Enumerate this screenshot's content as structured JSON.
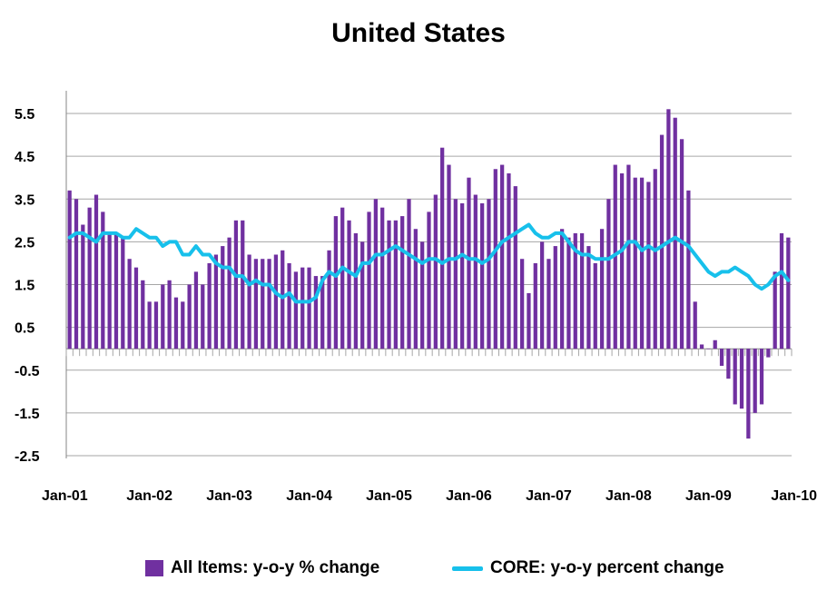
{
  "chart_data": {
    "type": "bar+line",
    "title": "United States",
    "xlabel": "",
    "ylabel": "",
    "ylim": [
      -2.5,
      6.0
    ],
    "y_ticks": [
      "5.5",
      "4.5",
      "3.5",
      "2.5",
      "1.5",
      "0.5",
      "-0.5",
      "-1.5",
      "-2.5"
    ],
    "y_tick_values": [
      5.5,
      4.5,
      3.5,
      2.5,
      1.5,
      0.5,
      -0.5,
      -1.5,
      -2.5
    ],
    "x_ticks": [
      "Jan-01",
      "Jan-02",
      "Jan-03",
      "Jan-04",
      "Jan-05",
      "Jan-06",
      "Jan-07",
      "Jan-08",
      "Jan-09",
      "Jan-10"
    ],
    "x_start": "Jan-01",
    "x_frequency": "monthly",
    "grid": "horizontal",
    "legend_position": "bottom",
    "colors": {
      "bars": "#7030A0",
      "line": "#17C0EB",
      "grid": "#A6A6A6"
    },
    "series": [
      {
        "name": "All Items: y-o-y % change",
        "kind": "bar",
        "values": [
          3.7,
          3.5,
          2.9,
          3.3,
          3.6,
          3.2,
          2.7,
          2.7,
          2.6,
          2.1,
          1.9,
          1.6,
          1.1,
          1.1,
          1.5,
          1.6,
          1.2,
          1.1,
          1.5,
          1.8,
          1.5,
          2.0,
          2.2,
          2.4,
          2.6,
          3.0,
          3.0,
          2.2,
          2.1,
          2.1,
          2.1,
          2.2,
          2.3,
          2.0,
          1.8,
          1.9,
          1.9,
          1.7,
          1.7,
          2.3,
          3.1,
          3.3,
          3.0,
          2.7,
          2.5,
          3.2,
          3.5,
          3.3,
          3.0,
          3.0,
          3.1,
          3.5,
          2.8,
          2.5,
          3.2,
          3.6,
          4.7,
          4.3,
          3.5,
          3.4,
          4.0,
          3.6,
          3.4,
          3.5,
          4.2,
          4.3,
          4.1,
          3.8,
          2.1,
          1.3,
          2.0,
          2.5,
          2.1,
          2.4,
          2.8,
          2.6,
          2.7,
          2.7,
          2.4,
          2.0,
          2.8,
          3.5,
          4.3,
          4.1,
          4.3,
          4.0,
          4.0,
          3.9,
          4.2,
          5.0,
          5.6,
          5.4,
          4.9,
          3.7,
          1.1,
          0.1,
          0.0,
          0.2,
          -0.4,
          -0.7,
          -1.3,
          -1.4,
          -2.1,
          -1.5,
          -1.3,
          -0.2,
          1.8,
          2.7,
          2.6
        ],
        "color": "#7030A0"
      },
      {
        "name": "CORE: y-o-y percent change",
        "kind": "line",
        "values": [
          2.6,
          2.7,
          2.7,
          2.6,
          2.5,
          2.7,
          2.7,
          2.7,
          2.6,
          2.6,
          2.8,
          2.7,
          2.6,
          2.6,
          2.4,
          2.5,
          2.5,
          2.2,
          2.2,
          2.4,
          2.2,
          2.2,
          2.0,
          1.9,
          1.9,
          1.7,
          1.7,
          1.5,
          1.6,
          1.5,
          1.5,
          1.3,
          1.2,
          1.3,
          1.1,
          1.1,
          1.1,
          1.2,
          1.6,
          1.8,
          1.7,
          1.9,
          1.8,
          1.7,
          2.0,
          2.0,
          2.2,
          2.2,
          2.3,
          2.4,
          2.3,
          2.2,
          2.1,
          2.0,
          2.1,
          2.1,
          2.0,
          2.1,
          2.1,
          2.2,
          2.1,
          2.1,
          2.0,
          2.1,
          2.3,
          2.5,
          2.6,
          2.7,
          2.8,
          2.9,
          2.7,
          2.6,
          2.6,
          2.7,
          2.7,
          2.5,
          2.3,
          2.2,
          2.2,
          2.1,
          2.1,
          2.1,
          2.2,
          2.3,
          2.5,
          2.5,
          2.3,
          2.4,
          2.3,
          2.4,
          2.5,
          2.6,
          2.5,
          2.4,
          2.2,
          2.0,
          1.8,
          1.7,
          1.8,
          1.8,
          1.9,
          1.8,
          1.7,
          1.5,
          1.4,
          1.5,
          1.7,
          1.8,
          1.6
        ],
        "color": "#17C0EB"
      }
    ]
  }
}
